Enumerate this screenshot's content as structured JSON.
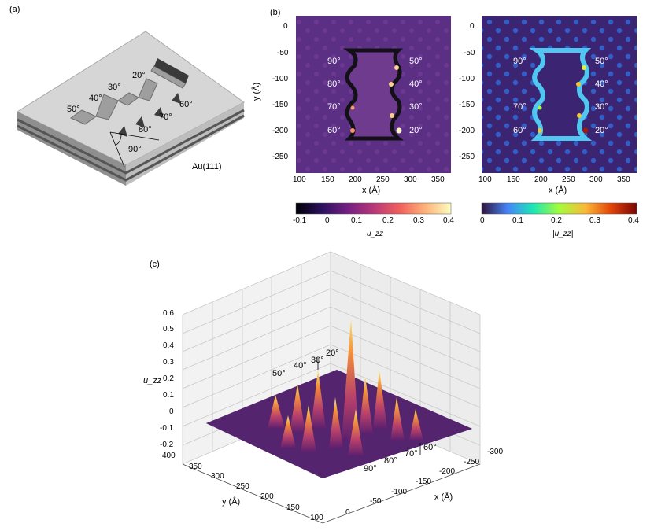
{
  "panel_a": {
    "label": "(a)",
    "substrate_label": "Au(111)",
    "angles_top": [
      "20°",
      "30°",
      "40°",
      "50°"
    ],
    "angles_bottom": [
      "60°",
      "70°",
      "80°",
      "90°"
    ]
  },
  "panel_b": {
    "label": "(b)",
    "left_map": {
      "ylabel": "y (Å)",
      "xlabel": "x (Å)",
      "xticks": [
        "100",
        "150",
        "200",
        "250",
        "300",
        "350"
      ],
      "yticks": [
        "0",
        "-50",
        "-100",
        "-150",
        "-200",
        "-250"
      ],
      "angles_left": [
        "90°",
        "80°",
        "70°",
        "60°"
      ],
      "angles_right": [
        "50°",
        "40°",
        "30°",
        "20°"
      ],
      "colorbar_label": "u_zz",
      "colorbar_ticks": [
        "-0.1",
        "0",
        "0.1",
        "0.2",
        "0.3",
        "0.4"
      ],
      "colormap": [
        "#000004",
        "#2c115f",
        "#721f81",
        "#b73779",
        "#f1605d",
        "#feb078",
        "#fcfdbf"
      ]
    },
    "right_map": {
      "xlabel": "x (Å)",
      "xticks": [
        "100",
        "150",
        "200",
        "250",
        "300",
        "350"
      ],
      "yticks": [
        "0",
        "-50",
        "-100",
        "-150",
        "-200",
        "-250"
      ],
      "angles_left": [
        "90°",
        "70°",
        "60°"
      ],
      "angles_right": [
        "50°",
        "40°",
        "30°",
        "20°"
      ],
      "colorbar_label": "|u_zz|",
      "colorbar_ticks": [
        "0",
        "0.1",
        "0.2",
        "0.3",
        "0.4"
      ],
      "colormap": [
        "#30123b",
        "#4686fb",
        "#1be5b5",
        "#a4fc3c",
        "#fbb938",
        "#e4460a",
        "#7a0403"
      ]
    }
  },
  "panel_c": {
    "label": "(c)",
    "zlabel": "u_zz",
    "zticks": [
      "0.6",
      "0.5",
      "0.4",
      "0.3",
      "0.2",
      "0.1",
      "0",
      "-0.1",
      "-0.2"
    ],
    "ylabel": "y (Å)",
    "yticks": [
      "400",
      "350",
      "300",
      "250",
      "200",
      "150",
      "100"
    ],
    "xlabel": "x (Å)",
    "xticks": [
      "0",
      "-50",
      "-100",
      "-150",
      "-200",
      "-250",
      "-300"
    ],
    "angles": [
      "50°",
      "40°",
      "30°",
      "20°",
      "90°",
      "80°",
      "70°",
      "60°"
    ]
  }
}
